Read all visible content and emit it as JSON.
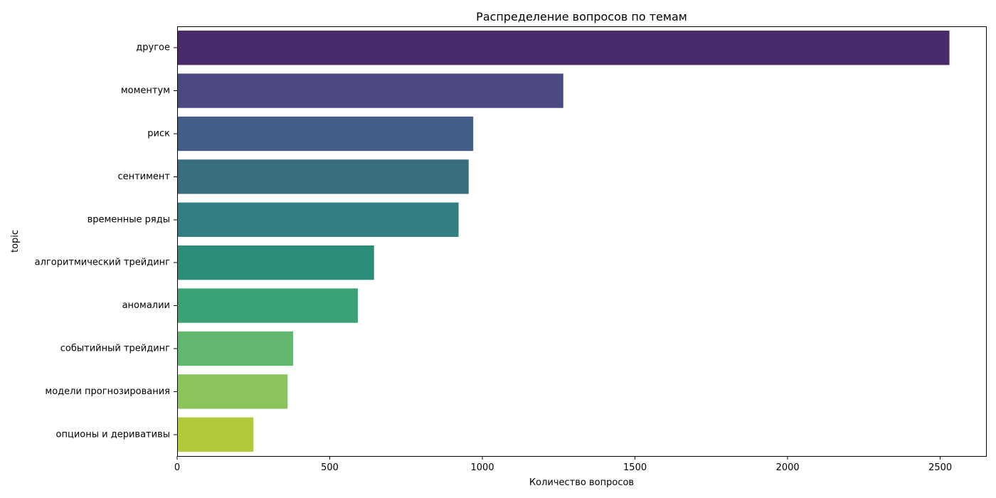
{
  "chart_data": {
    "type": "bar",
    "orientation": "horizontal",
    "title": "Распределение вопросов по темам",
    "xlabel": "Количество вопросов",
    "ylabel": "topic",
    "xlim": [
      0,
      2650
    ],
    "xticks": [
      0,
      500,
      1000,
      1500,
      2000,
      2500
    ],
    "categories": [
      "другое",
      "моментум",
      "риск",
      "сентимент",
      "временные ряды",
      "алгоритмический трейдинг",
      "аномалии",
      "событийный трейдинг",
      "модели прогнозирования",
      "опционы и деривативы"
    ],
    "values": [
      2530,
      1265,
      970,
      955,
      922,
      645,
      592,
      380,
      362,
      250
    ],
    "colors": [
      "#482b6a",
      "#4b4882",
      "#425d87",
      "#386e80",
      "#327e81",
      "#2d8d7b",
      "#3ba276",
      "#62b86f",
      "#8ac45b",
      "#b2c93a"
    ],
    "grid": false,
    "legend": "none"
  }
}
